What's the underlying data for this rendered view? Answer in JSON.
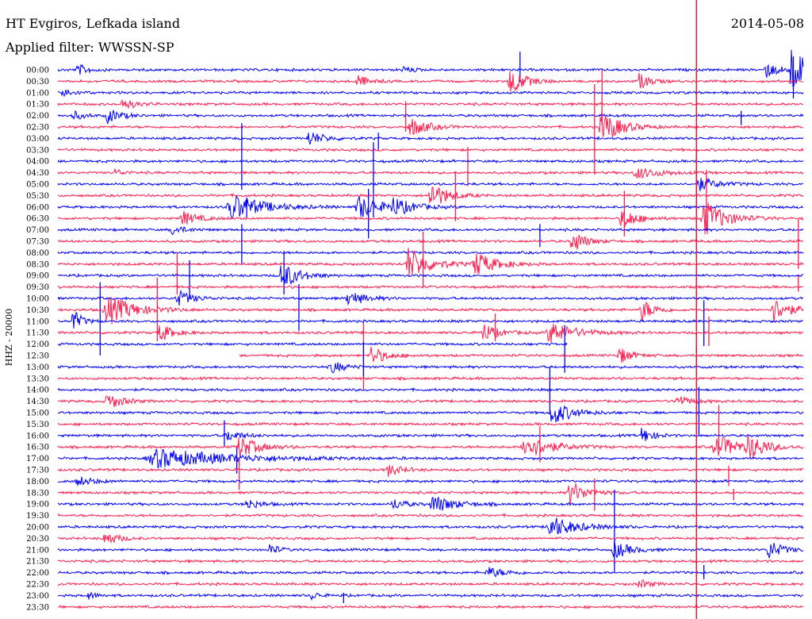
{
  "header": {
    "station": "HT Evgiros, Lefkada island",
    "date": "2014-05-08",
    "filter": "Applied filter: WWSSN-SP",
    "channel": "HHZ - 20000"
  },
  "chart_data": {
    "type": "line",
    "title": "HT Evgiros, Lefkada island",
    "subtitle": "Applied filter: WWSSN-SP",
    "ylabel": "HHZ - 20000",
    "colors": {
      "even_rows": "#0000ff",
      "odd_rows": "#ff1e50",
      "marker": "#e8102a"
    },
    "rows": [
      "00:00",
      "00:30",
      "01:00",
      "01:30",
      "02:00",
      "02:30",
      "03:00",
      "03:30",
      "04:00",
      "04:30",
      "05:00",
      "05:30",
      "06:00",
      "06:30",
      "07:00",
      "07:30",
      "08:00",
      "08:30",
      "09:00",
      "09:30",
      "10:00",
      "10:30",
      "11:00",
      "11:30",
      "12:00",
      "12:30",
      "13:00",
      "13:30",
      "14:00",
      "14:30",
      "15:00",
      "15:30",
      "16:00",
      "16:30",
      "17:00",
      "17:30",
      "18:00",
      "18:30",
      "19:00",
      "19:30",
      "20:00",
      "20:30",
      "21:00",
      "21:30",
      "22:00",
      "22:30",
      "23:00",
      "23:30"
    ],
    "row_minutes": 30,
    "x_range_minutes": [
      0,
      30
    ],
    "current_time_marker_minute": 25.7,
    "gaps": [
      {
        "row": "12:00",
        "from_minute": 20.5,
        "to_minute": 30
      },
      {
        "row": "12:30",
        "from_minute": 0,
        "to_minute": 7.3
      }
    ],
    "events": [
      {
        "row": "00:00",
        "minute": 0.8,
        "amplitude": 0.6,
        "duration": 0.5
      },
      {
        "row": "00:00",
        "minute": 13.9,
        "amplitude": 0.4,
        "duration": 0.4
      },
      {
        "row": "00:00",
        "minute": 28.5,
        "amplitude": 0.8,
        "duration": 0.7
      },
      {
        "row": "00:00",
        "minute": 29.5,
        "amplitude": 2.5,
        "duration": 0.8
      },
      {
        "row": "00:30",
        "minute": 12.0,
        "amplitude": 0.8,
        "duration": 0.5
      },
      {
        "row": "00:30",
        "minute": 18.2,
        "amplitude": 1.5,
        "duration": 0.7
      },
      {
        "row": "00:30",
        "minute": 23.4,
        "amplitude": 0.9,
        "duration": 0.5
      },
      {
        "row": "01:00",
        "minute": 0.2,
        "amplitude": 0.5,
        "duration": 0.5
      },
      {
        "row": "01:30",
        "minute": 2.6,
        "amplitude": 0.6,
        "duration": 0.6
      },
      {
        "row": "02:00",
        "minute": 0.6,
        "amplitude": 0.5,
        "duration": 0.5
      },
      {
        "row": "02:00",
        "minute": 2.0,
        "amplitude": 0.8,
        "duration": 0.6
      },
      {
        "row": "02:30",
        "minute": 14.2,
        "amplitude": 1.0,
        "duration": 0.8
      },
      {
        "row": "02:30",
        "minute": 21.9,
        "amplitude": 1.8,
        "duration": 0.9
      },
      {
        "row": "03:00",
        "minute": 10.1,
        "amplitude": 0.8,
        "duration": 0.7
      },
      {
        "row": "04:30",
        "minute": 2.3,
        "amplitude": 0.4,
        "duration": 0.4
      },
      {
        "row": "04:30",
        "minute": 23.3,
        "amplitude": 0.6,
        "duration": 1.2
      },
      {
        "row": "05:00",
        "minute": 25.8,
        "amplitude": 0.7,
        "duration": 0.9
      },
      {
        "row": "05:30",
        "minute": 15.0,
        "amplitude": 1.5,
        "duration": 0.8
      },
      {
        "row": "06:00",
        "minute": 7.0,
        "amplitude": 1.4,
        "duration": 1.5
      },
      {
        "row": "06:00",
        "minute": 12.1,
        "amplitude": 1.3,
        "duration": 1.0
      },
      {
        "row": "06:00",
        "minute": 13.5,
        "amplitude": 0.8,
        "duration": 1.0
      },
      {
        "row": "06:30",
        "minute": 5.0,
        "amplitude": 0.8,
        "duration": 0.7
      },
      {
        "row": "06:30",
        "minute": 22.7,
        "amplitude": 1.2,
        "duration": 0.7
      },
      {
        "row": "06:30",
        "minute": 26.0,
        "amplitude": 2.0,
        "duration": 1.0
      },
      {
        "row": "07:00",
        "minute": 4.6,
        "amplitude": 0.5,
        "duration": 0.6
      },
      {
        "row": "07:30",
        "minute": 20.7,
        "amplitude": 1.3,
        "duration": 0.6
      },
      {
        "row": "08:30",
        "minute": 14.1,
        "amplitude": 1.8,
        "duration": 1.0
      },
      {
        "row": "08:30",
        "minute": 16.8,
        "amplitude": 1.3,
        "duration": 1.0
      },
      {
        "row": "09:00",
        "minute": 9.0,
        "amplitude": 1.5,
        "duration": 0.8
      },
      {
        "row": "10:00",
        "minute": 4.8,
        "amplitude": 0.9,
        "duration": 0.7
      },
      {
        "row": "10:00",
        "minute": 11.7,
        "amplitude": 0.8,
        "duration": 0.8
      },
      {
        "row": "10:30",
        "minute": 2.0,
        "amplitude": 1.6,
        "duration": 1.3
      },
      {
        "row": "10:30",
        "minute": 23.5,
        "amplitude": 1.2,
        "duration": 0.6
      },
      {
        "row": "10:30",
        "minute": 28.8,
        "amplitude": 1.3,
        "duration": 0.8
      },
      {
        "row": "11:00",
        "minute": 0.6,
        "amplitude": 1.3,
        "duration": 0.4
      },
      {
        "row": "11:30",
        "minute": 4.1,
        "amplitude": 1.0,
        "duration": 0.6
      },
      {
        "row": "11:30",
        "minute": 17.1,
        "amplitude": 1.0,
        "duration": 0.7
      },
      {
        "row": "11:30",
        "minute": 19.8,
        "amplitude": 1.2,
        "duration": 1.2
      },
      {
        "row": "12:30",
        "minute": 12.6,
        "amplitude": 1.0,
        "duration": 0.7
      },
      {
        "row": "12:30",
        "minute": 22.6,
        "amplitude": 0.9,
        "duration": 0.6
      },
      {
        "row": "13:00",
        "minute": 11.0,
        "amplitude": 0.7,
        "duration": 0.6
      },
      {
        "row": "14:30",
        "minute": 2.0,
        "amplitude": 0.9,
        "duration": 0.7
      },
      {
        "row": "14:30",
        "minute": 24.9,
        "amplitude": 0.6,
        "duration": 0.7
      },
      {
        "row": "15:00",
        "minute": 19.9,
        "amplitude": 1.3,
        "duration": 0.9
      },
      {
        "row": "16:00",
        "minute": 6.8,
        "amplitude": 0.6,
        "duration": 0.7
      },
      {
        "row": "16:00",
        "minute": 23.5,
        "amplitude": 0.9,
        "duration": 0.5
      },
      {
        "row": "16:30",
        "minute": 7.3,
        "amplitude": 1.2,
        "duration": 0.9
      },
      {
        "row": "16:30",
        "minute": 18.8,
        "amplitude": 1.3,
        "duration": 1.2
      },
      {
        "row": "16:30",
        "minute": 26.5,
        "amplitude": 1.2,
        "duration": 1.2
      },
      {
        "row": "16:30",
        "minute": 27.8,
        "amplitude": 1.2,
        "duration": 0.8
      },
      {
        "row": "17:00",
        "minute": 4.0,
        "amplitude": 1.0,
        "duration": 3.5
      },
      {
        "row": "17:30",
        "minute": 13.3,
        "amplitude": 0.7,
        "duration": 0.6
      },
      {
        "row": "18:00",
        "minute": 0.8,
        "amplitude": 0.5,
        "duration": 0.8
      },
      {
        "row": "18:30",
        "minute": 20.6,
        "amplitude": 1.2,
        "duration": 0.8
      },
      {
        "row": "19:00",
        "minute": 7.6,
        "amplitude": 0.6,
        "duration": 0.6
      },
      {
        "row": "19:00",
        "minute": 13.5,
        "amplitude": 0.6,
        "duration": 0.6
      },
      {
        "row": "19:00",
        "minute": 15.1,
        "amplitude": 1.0,
        "duration": 1.0
      },
      {
        "row": "20:00",
        "minute": 19.8,
        "amplitude": 1.2,
        "duration": 1.2
      },
      {
        "row": "20:30",
        "minute": 1.9,
        "amplitude": 0.8,
        "duration": 0.6
      },
      {
        "row": "21:00",
        "minute": 8.5,
        "amplitude": 0.7,
        "duration": 0.4
      },
      {
        "row": "21:00",
        "minute": 22.4,
        "amplitude": 0.9,
        "duration": 0.8
      },
      {
        "row": "21:00",
        "minute": 28.6,
        "amplitude": 1.0,
        "duration": 0.7
      },
      {
        "row": "22:00",
        "minute": 17.3,
        "amplitude": 0.6,
        "duration": 0.8
      },
      {
        "row": "22:30",
        "minute": 23.4,
        "amplitude": 0.5,
        "duration": 0.5
      },
      {
        "row": "23:00",
        "minute": 1.2,
        "amplitude": 0.4,
        "duration": 0.4
      },
      {
        "row": "23:00",
        "minute": 10.2,
        "amplitude": 0.4,
        "duration": 0.4
      }
    ],
    "spikes": [
      {
        "row": "00:00",
        "minute": 18.6,
        "up": 1.9,
        "down": 1.3
      },
      {
        "row": "00:30",
        "minute": 21.9,
        "up": 1.2,
        "down": 4.6
      },
      {
        "row": "01:00",
        "minute": 29.6,
        "up": 3.8,
        "down": 0.6
      },
      {
        "row": "01:30",
        "minute": 14.0,
        "up": 0.3,
        "down": 2.9
      },
      {
        "row": "02:00",
        "minute": 27.5,
        "up": 0.5,
        "down": 1.0
      },
      {
        "row": "02:30",
        "minute": 21.6,
        "up": 4.5,
        "down": 5.0
      },
      {
        "row": "03:00",
        "minute": 12.9,
        "up": 0.6,
        "down": 1.3
      },
      {
        "row": "03:30",
        "minute": 16.5,
        "up": 0.3,
        "down": 3.8
      },
      {
        "row": "04:00",
        "minute": 7.4,
        "up": 4.0,
        "down": 3.0
      },
      {
        "row": "04:30",
        "minute": 25.7,
        "up": 2.0,
        "down": 3.2
      },
      {
        "row": "05:00",
        "minute": 12.7,
        "up": 4.4,
        "down": 3.5
      },
      {
        "row": "05:30",
        "minute": 16.0,
        "up": 2.5,
        "down": 2.7
      },
      {
        "row": "05:30",
        "minute": 26.1,
        "up": 2.7,
        "down": 3.6
      },
      {
        "row": "06:00",
        "minute": 7.6,
        "up": 1.0,
        "down": 1.1
      },
      {
        "row": "06:00",
        "minute": 12.5,
        "up": 1.9,
        "down": 3.3
      },
      {
        "row": "06:30",
        "minute": 22.8,
        "up": 2.9,
        "down": 1.9
      },
      {
        "row": "07:00",
        "minute": 19.4,
        "up": 0.6,
        "down": 1.8
      },
      {
        "row": "07:30",
        "minute": 29.8,
        "up": 2.3,
        "down": 2.9
      },
      {
        "row": "08:00",
        "minute": 7.4,
        "up": 3.0,
        "down": 1.2
      },
      {
        "row": "08:30",
        "minute": 14.7,
        "up": 3.4,
        "down": 2.5
      },
      {
        "row": "08:30",
        "minute": 4.8,
        "up": 1.2,
        "down": 3.2
      },
      {
        "row": "09:00",
        "minute": 5.3,
        "up": 1.6,
        "down": 2.5
      },
      {
        "row": "09:00",
        "minute": 9.1,
        "up": 2.6,
        "down": 2.0
      },
      {
        "row": "09:30",
        "minute": 29.8,
        "up": 1.2,
        "down": 0.5
      },
      {
        "row": "10:00",
        "minute": 1.7,
        "up": 1.7,
        "down": 6.0
      },
      {
        "row": "10:00",
        "minute": 9.7,
        "up": 1.5,
        "down": 3.4
      },
      {
        "row": "10:30",
        "minute": 4.0,
        "up": 3.4,
        "down": 3.3
      },
      {
        "row": "11:00",
        "minute": 26.0,
        "up": 2.2,
        "down": 2.6
      },
      {
        "row": "11:30",
        "minute": 17.6,
        "up": 2.0,
        "down": 0.9
      },
      {
        "row": "11:30",
        "minute": 26.2,
        "up": 1.7,
        "down": 1.4
      },
      {
        "row": "12:00",
        "minute": 20.4,
        "up": 2.0,
        "down": 3.0
      },
      {
        "row": "12:30",
        "minute": 12.3,
        "up": 3.5,
        "down": 3.6
      },
      {
        "row": "12:30",
        "minute": 25.7,
        "up": 1.2,
        "down": 1.0
      },
      {
        "row": "13:00",
        "minute": 12.3,
        "up": 2.6,
        "down": 1.0
      },
      {
        "row": "14:00",
        "minute": 19.8,
        "up": 2.4,
        "down": 2.5
      },
      {
        "row": "15:00",
        "minute": 25.8,
        "up": 2.7,
        "down": 2.4
      },
      {
        "row": "15:30",
        "minute": 26.6,
        "up": 2.0,
        "down": 2.6
      },
      {
        "row": "16:00",
        "minute": 6.7,
        "up": 1.6,
        "down": 1.1
      },
      {
        "row": "16:30",
        "minute": 19.4,
        "up": 2.2,
        "down": 1.6
      },
      {
        "row": "17:00",
        "minute": 7.2,
        "up": 1.1,
        "down": 1.6
      },
      {
        "row": "17:30",
        "minute": 7.3,
        "up": 1.2,
        "down": 2.1
      },
      {
        "row": "17:30",
        "minute": 27.0,
        "up": 0.4,
        "down": 1.7
      },
      {
        "row": "18:30",
        "minute": 21.6,
        "up": 1.5,
        "down": 1.9
      },
      {
        "row": "18:30",
        "minute": 27.2,
        "up": 0.4,
        "down": 0.8
      },
      {
        "row": "20:00",
        "minute": 22.4,
        "up": 3.9,
        "down": 2.5
      },
      {
        "row": "21:00",
        "minute": 22.4,
        "up": 1.0,
        "down": 2.4
      },
      {
        "row": "22:00",
        "minute": 26.0,
        "up": 0.8,
        "down": 0.7
      },
      {
        "row": "23:00",
        "minute": 11.5,
        "up": 0.3,
        "down": 0.8
      }
    ]
  }
}
